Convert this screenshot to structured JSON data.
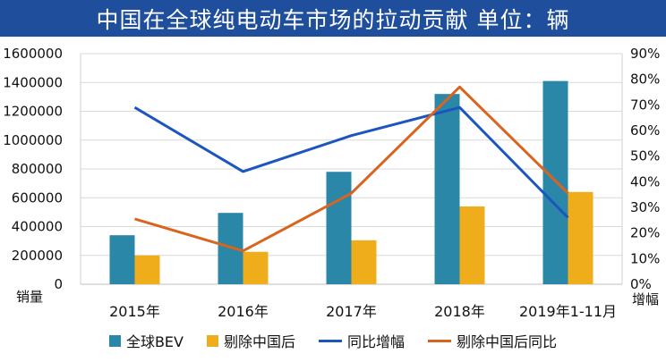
{
  "title": "中国在全球纯电动车市场的拉动贡献  单位：辆",
  "chart_data": {
    "type": "bar",
    "categories": [
      "2015年",
      "2016年",
      "2017年",
      "2018年",
      "2019年1-11月"
    ],
    "series": [
      {
        "name": "全球BEV",
        "kind": "bar",
        "axis": "left",
        "color": "#2a87a8",
        "values": [
          340000,
          495000,
          780000,
          1320000,
          1410000
        ]
      },
      {
        "name": "剔除中国后",
        "kind": "bar",
        "axis": "left",
        "color": "#f0ad1b",
        "values": [
          200000,
          225000,
          305000,
          540000,
          640000
        ]
      },
      {
        "name": "同比增幅",
        "kind": "line",
        "axis": "right",
        "color": "#1b55c0",
        "values": [
          69,
          44,
          58,
          69,
          26
        ]
      },
      {
        "name": "剔除中国后同比",
        "kind": "line",
        "axis": "right",
        "color": "#d9641e",
        "values": [
          25.5,
          13,
          35.5,
          77,
          35.5
        ]
      }
    ],
    "ylabel": "销量",
    "y2label": "增幅",
    "ylim": [
      0,
      1600000
    ],
    "y2lim": [
      0,
      90
    ],
    "yticks": [
      "0",
      "200000",
      "400000",
      "600000",
      "800000",
      "1000000",
      "1200000",
      "1400000",
      "1600000"
    ],
    "y2ticks": [
      "0%",
      "10%",
      "20%",
      "30%",
      "40%",
      "50%",
      "60%",
      "70%",
      "80%",
      "90%"
    ],
    "grid": true,
    "legend": "bottom"
  }
}
